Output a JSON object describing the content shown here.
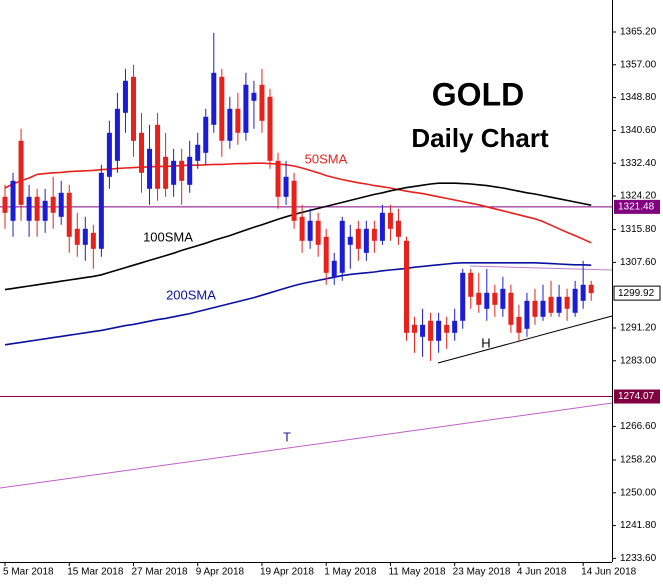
{
  "chart_data": {
    "type": "candlestick",
    "title": "GOLD",
    "subtitle": "Daily Chart",
    "categories": [
      "5 Mar 2018",
      null,
      null,
      null,
      null,
      null,
      null,
      null,
      "15 Mar 2018",
      null,
      null,
      null,
      null,
      null,
      null,
      null,
      "27 Mar 2018",
      null,
      null,
      null,
      null,
      null,
      null,
      null,
      "9 Apr 2018",
      null,
      null,
      null,
      null,
      null,
      null,
      null,
      "19 Apr 2018",
      null,
      null,
      null,
      null,
      null,
      null,
      null,
      "1 May 2018",
      null,
      null,
      null,
      null,
      null,
      null,
      null,
      "11 May 2018",
      null,
      null,
      null,
      null,
      null,
      null,
      null,
      "23 May 2018",
      null,
      null,
      null,
      null,
      null,
      null,
      null,
      "4 Jun 2018",
      null,
      null,
      null,
      null,
      null,
      null,
      null,
      "14 Jun 2018",
      null
    ],
    "open": [
      1324,
      1318,
      1338,
      1318,
      1324,
      1318,
      1324,
      1319,
      1325,
      1316,
      1312,
      1315,
      1311,
      1329,
      1333,
      1345,
      1354,
      1340,
      1326,
      1342,
      1334,
      1327,
      1333,
      1327,
      1333,
      1335,
      1342,
      1354,
      1338,
      1346,
      1340,
      1348,
      1352,
      1349,
      1333,
      1324,
      1328,
      1319,
      1313,
      1318,
      1314,
      1304,
      1305,
      1312,
      1316,
      1310,
      1316,
      1313,
      1320,
      1318,
      1313,
      1292,
      1289,
      1293,
      1288,
      1292,
      1290,
      1293,
      1305,
      1300,
      1296,
      1300,
      1296,
      1300,
      1294,
      1291,
      1298,
      1294,
      1299,
      1295,
      1299,
      1295,
      1298,
      1302
    ],
    "high": [
      1327,
      1330,
      1341,
      1327,
      1326,
      1326,
      1329,
      1328,
      1327,
      1320,
      1319,
      1317,
      1332,
      1343,
      1350,
      1356,
      1357,
      1345,
      1342,
      1345,
      1340,
      1336,
      1336,
      1338,
      1340,
      1346,
      1365,
      1356,
      1349,
      1350,
      1355,
      1353,
      1356,
      1351,
      1335,
      1333,
      1330,
      1322,
      1321,
      1320,
      1316,
      1310,
      1319,
      1317,
      1318,
      1318,
      1318,
      1322,
      1322,
      1321,
      1314,
      1294,
      1296,
      1295,
      1295,
      1294,
      1296,
      1306,
      1306,
      1305,
      1306,
      1302,
      1304,
      1302,
      1297,
      1300,
      1301,
      1302,
      1303,
      1302,
      1301,
      1303,
      1308,
      1303
    ],
    "low": [
      1316,
      1314,
      1318,
      1314,
      1314,
      1315,
      1316,
      1317,
      1310,
      1309,
      1308,
      1306,
      1309,
      1326,
      1330,
      1340,
      1334,
      1325,
      1322,
      1323,
      1324,
      1324,
      1322,
      1325,
      1331,
      1332,
      1340,
      1334,
      1336,
      1337,
      1338,
      1341,
      1340,
      1331,
      1321,
      1322,
      1316,
      1310,
      1311,
      1309,
      1302,
      1302,
      1303,
      1306,
      1308,
      1308,
      1310,
      1312,
      1313,
      1312,
      1288,
      1285,
      1284,
      1283,
      1285,
      1286,
      1288,
      1291,
      1296,
      1295,
      1293,
      1294,
      1294,
      1290,
      1288,
      1289,
      1292,
      1293,
      1294,
      1294,
      1293,
      1294,
      1296,
      1298
    ],
    "close": [
      1320,
      1328,
      1322,
      1324,
      1318,
      1323,
      1320,
      1325,
      1314,
      1312,
      1316,
      1311,
      1330,
      1340,
      1346,
      1353,
      1338,
      1330,
      1336,
      1326,
      1326,
      1333,
      1328,
      1334,
      1337,
      1344,
      1355,
      1338,
      1346,
      1340,
      1352,
      1350,
      1343,
      1333,
      1324,
      1329,
      1318,
      1313,
      1318,
      1312,
      1305,
      1308,
      1318,
      1314,
      1311,
      1316,
      1313,
      1320,
      1316,
      1314,
      1290,
      1290,
      1292,
      1288,
      1293,
      1290,
      1293,
      1305,
      1299,
      1297,
      1300,
      1297,
      1301,
      1292,
      1290,
      1298,
      1294,
      1298,
      1295,
      1299,
      1296,
      1301,
      1302,
      1299.92
    ],
    "up_color": "#1c1cd6",
    "down_color": "#e8211c",
    "overlays": [
      {
        "name": "50SMA",
        "color": "#e8211c",
        "values": [
          1326.2,
          1327.2,
          1328.0,
          1328.7,
          1329.6,
          1329.8,
          1330.0,
          1330.1,
          1330.3,
          1330.4,
          1330.5,
          1330.6,
          1330.8,
          1330.9,
          1331.1,
          1331.2,
          1331.3,
          1331.4,
          1331.5,
          1331.6,
          1331.6,
          1331.7,
          1331.8,
          1331.9,
          1331.9,
          1332.0,
          1332.1,
          1332.1,
          1332.2,
          1332.3,
          1332.3,
          1332.4,
          1332.4,
          1332.3,
          1332.2,
          1332.0,
          1331.7,
          1331.2,
          1330.6,
          1330.0,
          1329.3,
          1328.8,
          1328.3,
          1327.9,
          1327.5,
          1327.2,
          1326.8,
          1326.5,
          1326.2,
          1325.8,
          1325.4,
          1325.1,
          1324.8,
          1324.4,
          1324.0,
          1323.6,
          1323.2,
          1322.8,
          1322.4,
          1322.0,
          1321.5,
          1321.0,
          1320.5,
          1320.0,
          1319.5,
          1319.0,
          1318.5,
          1317.8,
          1316.9,
          1316.0,
          1315.1,
          1314.3,
          1313.4,
          1312.5
        ]
      },
      {
        "name": "100SMA",
        "color": "#000000",
        "values": [
          1300.8,
          1301.1,
          1301.4,
          1301.7,
          1302.0,
          1302.3,
          1302.6,
          1302.9,
          1303.2,
          1303.5,
          1303.8,
          1304.1,
          1304.5,
          1305.1,
          1305.7,
          1306.3,
          1306.9,
          1307.5,
          1308.1,
          1308.7,
          1309.3,
          1309.9,
          1310.6,
          1311.2,
          1311.8,
          1312.4,
          1313.1,
          1313.7,
          1314.3,
          1315.0,
          1315.7,
          1316.4,
          1317.0,
          1317.7,
          1318.4,
          1319.0,
          1319.6,
          1320.1,
          1320.6,
          1321.1,
          1321.6,
          1322.1,
          1322.6,
          1323.1,
          1323.6,
          1324.1,
          1324.6,
          1325.0,
          1325.5,
          1325.9,
          1326.3,
          1326.6,
          1326.9,
          1327.2,
          1327.4,
          1327.4,
          1327.4,
          1327.3,
          1327.2,
          1327.0,
          1326.8,
          1326.5,
          1326.2,
          1325.8,
          1325.4,
          1325.0,
          1324.7,
          1324.3,
          1323.9,
          1323.5,
          1323.1,
          1322.7,
          1322.3,
          1321.9
        ]
      },
      {
        "name": "200SMA",
        "color": "#0a10a0",
        "values": [
          1287.0,
          1287.3,
          1287.6,
          1287.9,
          1288.2,
          1288.5,
          1288.8,
          1289.1,
          1289.4,
          1289.7,
          1290.0,
          1290.3,
          1290.6,
          1291.0,
          1291.4,
          1291.8,
          1292.1,
          1292.5,
          1292.9,
          1293.3,
          1293.6,
          1294.0,
          1294.4,
          1294.8,
          1295.3,
          1295.8,
          1296.3,
          1296.8,
          1297.3,
          1297.8,
          1298.3,
          1298.8,
          1299.4,
          1300.0,
          1300.6,
          1301.2,
          1301.8,
          1302.3,
          1302.7,
          1303.1,
          1303.5,
          1303.9,
          1304.3,
          1304.6,
          1304.8,
          1305.0,
          1305.2,
          1305.5,
          1305.7,
          1305.9,
          1306.1,
          1306.4,
          1306.6,
          1306.8,
          1307.0,
          1307.2,
          1307.4,
          1307.5,
          1307.5,
          1307.5,
          1307.5,
          1307.5,
          1307.5,
          1307.5,
          1307.5,
          1307.5,
          1307.5,
          1307.4,
          1307.3,
          1307.2,
          1307.1,
          1307.0,
          1307.0,
          1306.9
        ]
      }
    ],
    "hlines": [
      {
        "value": 1321.48,
        "color": "#800080"
      },
      {
        "value": 1274.07,
        "color": "#800040"
      }
    ],
    "last_price": 1299.92,
    "annotations": [
      "H",
      "T"
    ],
    "ylim": [
      1232.7,
      1373.2
    ],
    "yticks": [
      {
        "value": 1365.2,
        "label": "1365.20"
      },
      {
        "value": 1357,
        "label": "1357.00"
      },
      {
        "value": 1348.8,
        "label": "1348.80"
      },
      {
        "value": 1340.6,
        "label": "1340.60"
      },
      {
        "value": 1332.4,
        "label": "1332.40"
      },
      {
        "value": 1324.2,
        "label": "1324.20"
      },
      {
        "value": 1315.8,
        "label": "1315.80"
      },
      {
        "value": 1307.6,
        "label": "1307.60"
      },
      {
        "value": 1291.2,
        "label": "1291.20"
      },
      {
        "value": 1283,
        "label": "1283.00"
      },
      {
        "value": 1266.6,
        "label": "1266.60"
      },
      {
        "value": 1258.2,
        "label": "1258.20"
      },
      {
        "value": 1250,
        "label": "1250.00"
      },
      {
        "value": 1241.8,
        "label": "1241.80"
      },
      {
        "value": 1233.6,
        "label": "1233.60"
      }
    ]
  }
}
